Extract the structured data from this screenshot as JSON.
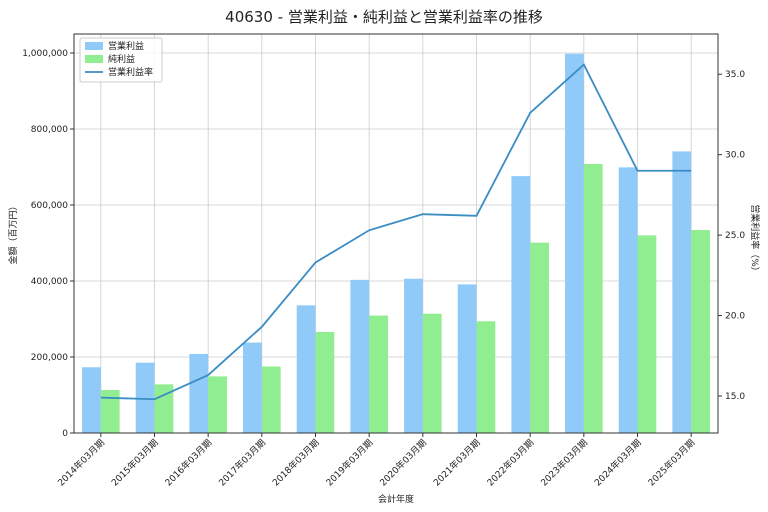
{
  "chart_data": {
    "type": "bar",
    "title": "40630 - 営業利益・純利益と営業利益率の推移",
    "xlabel": "会計年度",
    "ylabel": "金額（百万円）",
    "y2label": "営業利益率（%）",
    "categories": [
      "2014年03月期",
      "2015年03月期",
      "2016年03月期",
      "2017年03月期",
      "2018年03月期",
      "2019年03月期",
      "2020年03月期",
      "2021年03月期",
      "2022年03月期",
      "2023年03月期",
      "2024年03月期",
      "2025年03月期"
    ],
    "series": [
      {
        "name": "営業利益",
        "kind": "bar",
        "axis": "left",
        "color": "#90caf9",
        "values": [
          173000,
          185000,
          208000,
          238000,
          336000,
          403000,
          406000,
          391000,
          676000,
          998000,
          699000,
          741000
        ]
      },
      {
        "name": "純利益",
        "kind": "bar",
        "axis": "left",
        "color": "#90ee90",
        "values": [
          113000,
          128000,
          149000,
          175000,
          266000,
          309000,
          314000,
          294000,
          501000,
          708000,
          520000,
          534000
        ]
      },
      {
        "name": "営業利益率",
        "kind": "line",
        "axis": "right",
        "color": "#3a8cc4",
        "values": [
          14.9,
          14.8,
          16.3,
          19.3,
          23.3,
          25.3,
          26.3,
          26.2,
          32.6,
          35.6,
          29.0,
          29.0
        ]
      }
    ],
    "ylim": [
      0,
      1050000
    ],
    "y2lim": [
      12.7,
      37.5
    ],
    "yticks": [
      0,
      200000,
      400000,
      600000,
      800000,
      1000000
    ],
    "yticklabels": [
      "0",
      "200,000",
      "400,000",
      "600,000",
      "800,000",
      "1,000,000"
    ],
    "y2ticks": [
      15.0,
      20.0,
      25.0,
      30.0,
      35.0
    ],
    "y2ticklabels": [
      "15.0",
      "20.0",
      "25.0",
      "30.0",
      "35.0"
    ],
    "grid": true,
    "legend_position": "top-left"
  }
}
